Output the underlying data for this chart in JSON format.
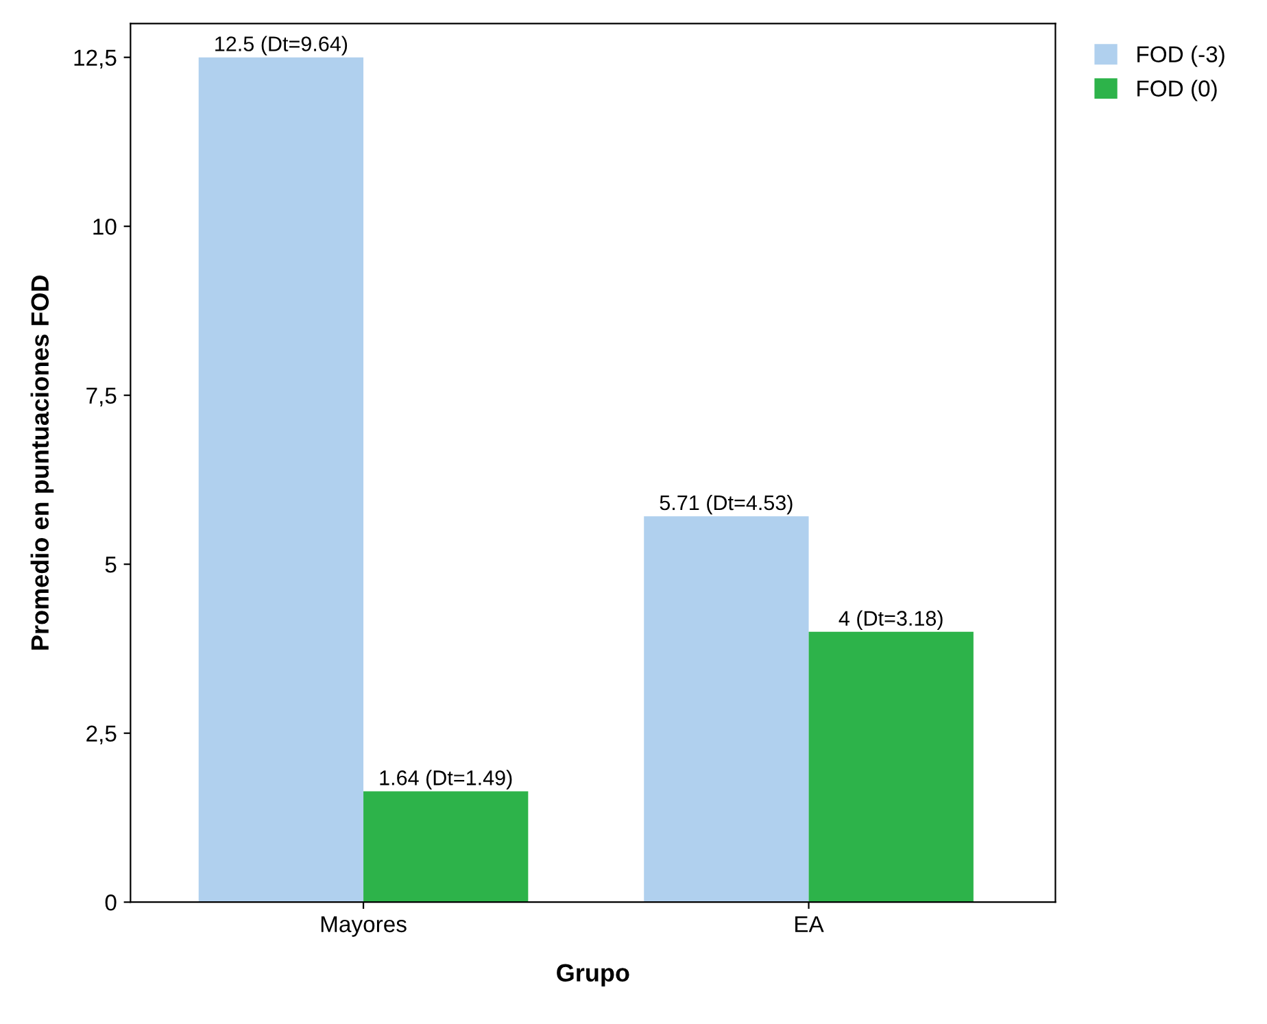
{
  "chart_data": {
    "type": "bar",
    "xlabel": "Grupo",
    "ylabel": "Promedio en puntuaciones FOD",
    "categories": [
      "Mayores",
      "EA"
    ],
    "series": [
      {
        "name": "FOD (-3)",
        "color": "#b0d0ee",
        "values": [
          12.5,
          5.71
        ],
        "value_labels": [
          "12.5 (Dt=9.64)",
          "5.71 (Dt=4.53)"
        ]
      },
      {
        "name": "FOD (0)",
        "color": "#2db34a",
        "values": [
          1.64,
          4
        ],
        "value_labels": [
          "1.64 (Dt=1.49)",
          "4 (Dt=3.18)"
        ]
      }
    ],
    "ylim": [
      0,
      13
    ],
    "yticks": [
      0,
      {
        "value": 2.5,
        "label": "2,5"
      },
      5,
      {
        "value": 7.5,
        "label": "7,5"
      },
      10,
      {
        "value": 12.5,
        "label": "12,5"
      }
    ],
    "grid": false,
    "legend": "top right"
  }
}
